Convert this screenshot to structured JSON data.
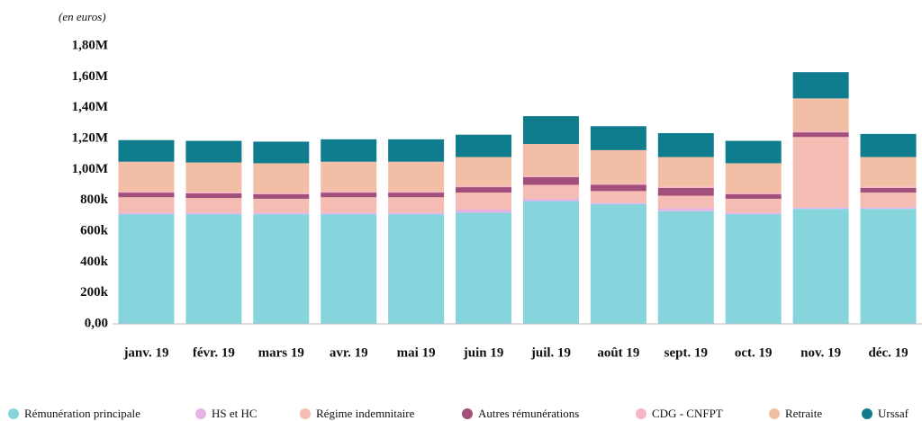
{
  "chart_data": {
    "type": "stacked_bar",
    "subtitle": "(en euros)",
    "categories": [
      "janv. 19",
      "févr. 19",
      "mars 19",
      "avr. 19",
      "mai 19",
      "juin 19",
      "juil. 19",
      "août 19",
      "sept. 19",
      "oct. 19",
      "nov. 19",
      "déc. 19"
    ],
    "series": [
      {
        "name": "Rémunération principale",
        "color": "#86d5dc",
        "values": [
          710000,
          710000,
          710000,
          710000,
          710000,
          720000,
          795000,
          775000,
          730000,
          710000,
          745000,
          745000
        ]
      },
      {
        "name": "HS et HC",
        "color": "#e6b4e4",
        "values": [
          10000,
          10000,
          10000,
          10000,
          10000,
          20000,
          15000,
          10000,
          20000,
          10000,
          10000,
          10000
        ]
      },
      {
        "name": "Régime indemnitaire",
        "color": "#f5bcb3",
        "values": [
          100000,
          95000,
          90000,
          100000,
          100000,
          110000,
          90000,
          75000,
          80000,
          90000,
          455000,
          95000
        ]
      },
      {
        "name": "Autres rémunérations",
        "color": "#a34f7c",
        "values": [
          30000,
          30000,
          30000,
          30000,
          30000,
          35000,
          50000,
          40000,
          50000,
          30000,
          30000,
          30000
        ]
      },
      {
        "name": "CDG - CNFPT",
        "color": "#f7b6c3",
        "values": [
          10000,
          10000,
          10000,
          10000,
          10000,
          10000,
          10000,
          10000,
          10000,
          10000,
          10000,
          10000
        ]
      },
      {
        "name": "Retraite",
        "color": "#f2bea5",
        "values": [
          190000,
          190000,
          190000,
          190000,
          190000,
          185000,
          205000,
          215000,
          190000,
          190000,
          210000,
          190000
        ]
      },
      {
        "name": "Urssaf",
        "color": "#0f7d8e",
        "values": [
          140000,
          140000,
          140000,
          145000,
          145000,
          145000,
          180000,
          155000,
          155000,
          145000,
          170000,
          150000
        ]
      }
    ],
    "ylim": [
      0,
      1800000
    ],
    "yticks": [
      {
        "value": 0,
        "label": "0,00"
      },
      {
        "value": 200000,
        "label": "200k"
      },
      {
        "value": 400000,
        "label": "400k"
      },
      {
        "value": 600000,
        "label": "600k"
      },
      {
        "value": 800000,
        "label": "800k"
      },
      {
        "value": 1000000,
        "label": "1,00M"
      },
      {
        "value": 1200000,
        "label": "1,20M"
      },
      {
        "value": 1400000,
        "label": "1,40M"
      },
      {
        "value": 1600000,
        "label": "1,60M"
      },
      {
        "value": 1800000,
        "label": "1,80M"
      }
    ],
    "grid": false
  }
}
